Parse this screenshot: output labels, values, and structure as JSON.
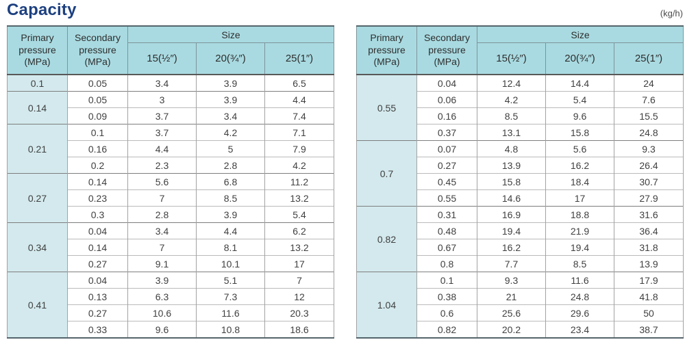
{
  "page": {
    "title": "Capacity",
    "unit": "(kg/h)"
  },
  "headers": {
    "primary": "Primary pressure (MPa)",
    "secondary": "Secondary pressure (MPa)",
    "size": "Size",
    "sizes": [
      "15(½″)",
      "20(¾″)",
      "25(1″)"
    ]
  },
  "colors": {
    "title": "#1d4080",
    "header_bg": "#a9dae1",
    "primary_cell_bg": "#d3e9ed",
    "table_border": "#54646b"
  },
  "tables": [
    {
      "groups": [
        {
          "primary": "0.1",
          "rows": [
            [
              "0.05",
              "3.4",
              "3.9",
              "6.5"
            ]
          ]
        },
        {
          "primary": "0.14",
          "rows": [
            [
              "0.05",
              "3",
              "3.9",
              "4.4"
            ],
            [
              "0.09",
              "3.7",
              "3.4",
              "7.4"
            ]
          ]
        },
        {
          "primary": "0.21",
          "rows": [
            [
              "0.1",
              "3.7",
              "4.2",
              "7.1"
            ],
            [
              "0.16",
              "4.4",
              "5",
              "7.9"
            ],
            [
              "0.2",
              "2.3",
              "2.8",
              "4.2"
            ]
          ]
        },
        {
          "primary": "0.27",
          "rows": [
            [
              "0.14",
              "5.6",
              "6.8",
              "11.2"
            ],
            [
              "0.23",
              "7",
              "8.5",
              "13.2"
            ],
            [
              "0.3",
              "2.8",
              "3.9",
              "5.4"
            ]
          ]
        },
        {
          "primary": "0.34",
          "rows": [
            [
              "0.04",
              "3.4",
              "4.4",
              "6.2"
            ],
            [
              "0.14",
              "7",
              "8.1",
              "13.2"
            ],
            [
              "0.27",
              "9.1",
              "10.1",
              "17"
            ]
          ]
        },
        {
          "primary": "0.41",
          "rows": [
            [
              "0.04",
              "3.9",
              "5.1",
              "7"
            ],
            [
              "0.13",
              "6.3",
              "7.3",
              "12"
            ],
            [
              "0.27",
              "10.6",
              "11.6",
              "20.3"
            ],
            [
              "0.33",
              "9.6",
              "10.8",
              "18.6"
            ]
          ]
        }
      ]
    },
    {
      "groups": [
        {
          "primary": "0.55",
          "rows": [
            [
              "0.04",
              "12.4",
              "14.4",
              "24"
            ],
            [
              "0.06",
              "4.2",
              "5.4",
              "7.6"
            ],
            [
              "0.16",
              "8.5",
              "9.6",
              "15.5"
            ],
            [
              "0.37",
              "13.1",
              "15.8",
              "24.8"
            ]
          ]
        },
        {
          "primary": "0.7",
          "rows": [
            [
              "0.07",
              "4.8",
              "5.6",
              "9.3"
            ],
            [
              "0.27",
              "13.9",
              "16.2",
              "26.4"
            ],
            [
              "0.45",
              "15.8",
              "18.4",
              "30.7"
            ],
            [
              "0.55",
              "14.6",
              "17",
              "27.9"
            ]
          ]
        },
        {
          "primary": "0.82",
          "rows": [
            [
              "0.31",
              "16.9",
              "18.8",
              "31.6"
            ],
            [
              "0.48",
              "19.4",
              "21.9",
              "36.4"
            ],
            [
              "0.67",
              "16.2",
              "19.4",
              "31.8"
            ],
            [
              "0.8",
              "7.7",
              "8.5",
              "13.9"
            ]
          ]
        },
        {
          "primary": "1.04",
          "rows": [
            [
              "0.1",
              "9.3",
              "11.6",
              "17.9"
            ],
            [
              "0.38",
              "21",
              "24.8",
              "41.8"
            ],
            [
              "0.6",
              "25.6",
              "29.6",
              "50"
            ],
            [
              "0.82",
              "20.2",
              "23.4",
              "38.7"
            ]
          ]
        }
      ]
    }
  ]
}
